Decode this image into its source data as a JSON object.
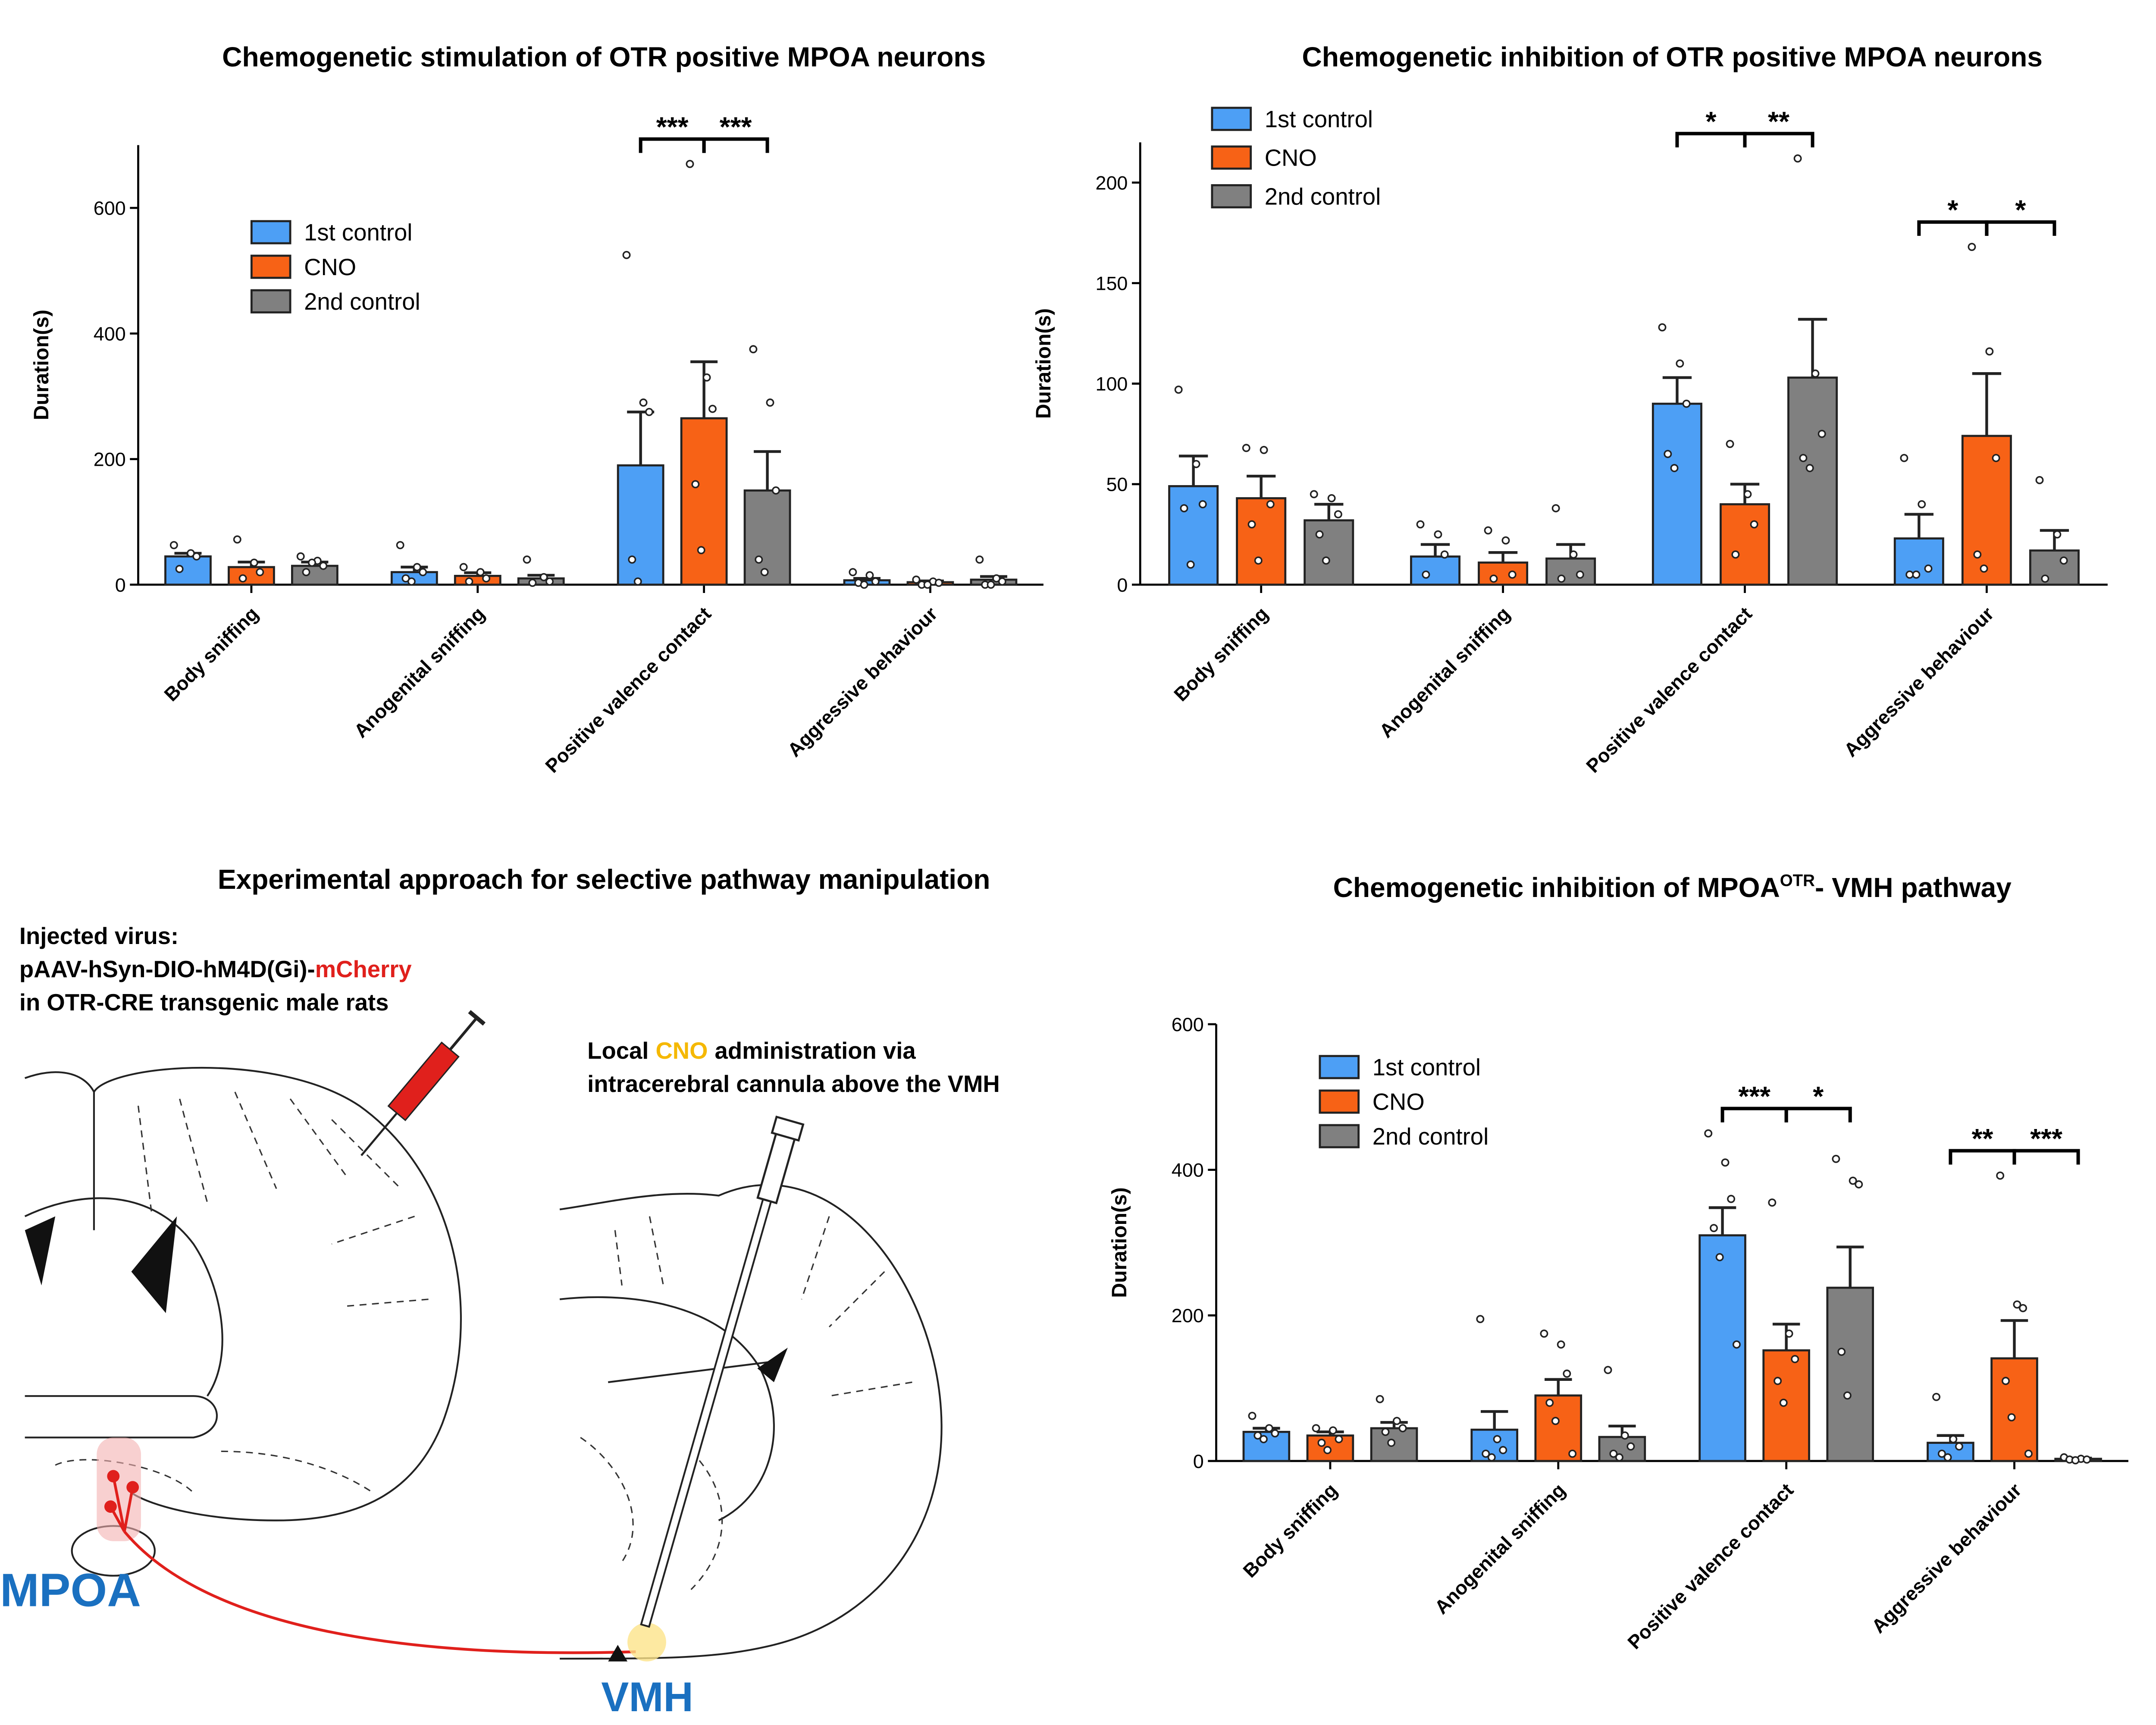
{
  "chart_data": [
    {
      "type": "bar",
      "title": "Chemogenetic stimulation of OTR positive MPOA neurons",
      "y_label": "Duration(s)",
      "categories": [
        "Body sniffing",
        "Anogenital sniffing",
        "Positive valence contact",
        "Aggressive behaviour"
      ],
      "ylim": [
        0,
        700
      ],
      "yticks": [
        0,
        200,
        400,
        600
      ],
      "series": [
        {
          "name": "1st control",
          "color": "#4d9ff5",
          "values": [
            45,
            20,
            190,
            7
          ],
          "errors": [
            5,
            8,
            85,
            3
          ],
          "points": [
            [
              63,
              50,
              45,
              25
            ],
            [
              63,
              28,
              20,
              10,
              5
            ],
            [
              525,
              290,
              275,
              40,
              5
            ],
            [
              20,
              15,
              5,
              3,
              0
            ]
          ]
        },
        {
          "name": "CNO",
          "color": "#f76216",
          "values": [
            28,
            14,
            265,
            4
          ],
          "errors": [
            8,
            5,
            90,
            2
          ],
          "points": [
            [
              72,
              35,
              20,
              10
            ],
            [
              28,
              20,
              10,
              5
            ],
            [
              670,
              330,
              280,
              160,
              55
            ],
            [
              8,
              5,
              3,
              0,
              0
            ]
          ]
        },
        {
          "name": "2nd control",
          "color": "#808080",
          "values": [
            30,
            10,
            150,
            8
          ],
          "errors": [
            6,
            5,
            62,
            5
          ],
          "points": [
            [
              45,
              38,
              30,
              20,
              35
            ],
            [
              40,
              12,
              5,
              3
            ],
            [
              375,
              290,
              150,
              40,
              20
            ],
            [
              40,
              10,
              5,
              0,
              0
            ]
          ]
        }
      ],
      "annotations": [
        {
          "category": 2,
          "from": 0,
          "to": 1,
          "label": "***"
        },
        {
          "category": 2,
          "from": 1,
          "to": 2,
          "label": "***"
        }
      ]
    },
    {
      "type": "bar",
      "title": "Chemogenetic inhibition of OTR positive MPOA neurons",
      "y_label": "Duration(s)",
      "categories": [
        "Body sniffing",
        "Anogenital sniffing",
        "Positive valence contact",
        "Aggressive behaviour"
      ],
      "ylim": [
        0,
        220
      ],
      "yticks": [
        0,
        50,
        100,
        150,
        200
      ],
      "series": [
        {
          "name": "1st control",
          "color": "#4d9ff5",
          "values": [
            49,
            14,
            90,
            23
          ],
          "errors": [
            15,
            6,
            13,
            12
          ],
          "points": [
            [
              97,
              60,
              40,
              38,
              10
            ],
            [
              30,
              25,
              15,
              5
            ],
            [
              128,
              110,
              90,
              65,
              58
            ],
            [
              63,
              40,
              8,
              5,
              5
            ]
          ]
        },
        {
          "name": "CNO",
          "color": "#f76216",
          "values": [
            43,
            11,
            40,
            74
          ],
          "errors": [
            11,
            5,
            10,
            31
          ],
          "points": [
            [
              68,
              67,
              40,
              30,
              12
            ],
            [
              27,
              22,
              5,
              3
            ],
            [
              70,
              45,
              30,
              15
            ],
            [
              168,
              116,
              63,
              15,
              8
            ]
          ]
        },
        {
          "name": "2nd control",
          "color": "#808080",
          "values": [
            32,
            13,
            103,
            17
          ],
          "errors": [
            8,
            7,
            29,
            10
          ],
          "points": [
            [
              45,
              43,
              35,
              25,
              12
            ],
            [
              38,
              15,
              5,
              3
            ],
            [
              212,
              105,
              75,
              63,
              58
            ],
            [
              52,
              25,
              12,
              3
            ]
          ]
        }
      ],
      "annotations": [
        {
          "category": 2,
          "from": 0,
          "to": 1,
          "label": "*"
        },
        {
          "category": 2,
          "from": 1,
          "to": 2,
          "label": "**"
        },
        {
          "category": 3,
          "from": 0,
          "to": 1,
          "label": "*"
        },
        {
          "category": 3,
          "from": 1,
          "to": 2,
          "label": "*"
        }
      ]
    },
    {
      "type": "bar",
      "title": "Chemogenetic inhibition of MPOA",
      "title_superscript": "OTR",
      "title_end": "- VMH pathway",
      "y_label": "Duration(s)",
      "categories": [
        "Body sniffing",
        "Anogenital sniffing",
        "Positive valence contact",
        "Aggressive behaviour"
      ],
      "ylim": [
        0,
        600
      ],
      "yticks": [
        0,
        200,
        400,
        600
      ],
      "series": [
        {
          "name": "1st control",
          "color": "#4d9ff5",
          "values": [
            40,
            43,
            310,
            25
          ],
          "errors": [
            5,
            25,
            38,
            10
          ],
          "points": [
            [
              62,
              45,
              38,
              35,
              30
            ],
            [
              195,
              30,
              15,
              10,
              5
            ],
            [
              450,
              410,
              360,
              320,
              280,
              160
            ],
            [
              88,
              30,
              20,
              10,
              5
            ]
          ]
        },
        {
          "name": "CNO",
          "color": "#f76216",
          "values": [
            35,
            90,
            152,
            141
          ],
          "errors": [
            5,
            22,
            36,
            52
          ],
          "points": [
            [
              45,
              42,
              30,
              25,
              15
            ],
            [
              175,
              160,
              120,
              80,
              55,
              10
            ],
            [
              355,
              175,
              140,
              110,
              80
            ],
            [
              392,
              215,
              210,
              110,
              60,
              10
            ]
          ]
        },
        {
          "name": "2nd control",
          "color": "#808080",
          "values": [
            45,
            33,
            238,
            3
          ],
          "errors": [
            8,
            15,
            56,
            1
          ],
          "points": [
            [
              85,
              55,
              45,
              40,
              25
            ],
            [
              125,
              35,
              20,
              10,
              5
            ],
            [
              415,
              385,
              380,
              150,
              90
            ],
            [
              5,
              3,
              2,
              2,
              1
            ]
          ]
        }
      ],
      "annotations": [
        {
          "category": 2,
          "from": 0,
          "to": 1,
          "label": "***"
        },
        {
          "category": 2,
          "from": 1,
          "to": 2,
          "label": "*"
        },
        {
          "category": 3,
          "from": 0,
          "to": 1,
          "label": "**"
        },
        {
          "category": 3,
          "from": 1,
          "to": 2,
          "label": "***"
        }
      ]
    }
  ],
  "diagram": {
    "title": "Experimental approach for selective pathway manipulation",
    "virus_heading": "Injected virus:",
    "virus_construct": "pAAV-hSyn-DIO-hM4D(Gi)-",
    "virus_reporter": "mCherry",
    "virus_host": "in OTR-CRE transgenic male rats",
    "cnò_text_start": "Local",
    "cno_word": "CNO",
    "cno_text_end": "administration via",
    "cno_text_line2": "intracerebral cannula above the VMH",
    "region_source": "MPOA",
    "region_target": "VMH"
  }
}
